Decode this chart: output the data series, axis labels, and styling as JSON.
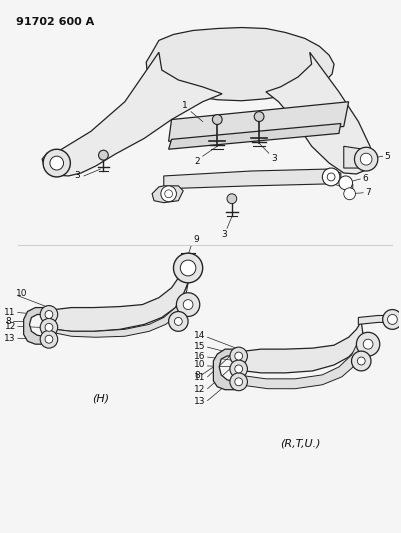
{
  "title": "91702 600 A",
  "background": "#f5f5f5",
  "text_color": "#111111",
  "line_color": "#222222",
  "figsize": [
    4.02,
    5.33
  ],
  "dpi": 100
}
